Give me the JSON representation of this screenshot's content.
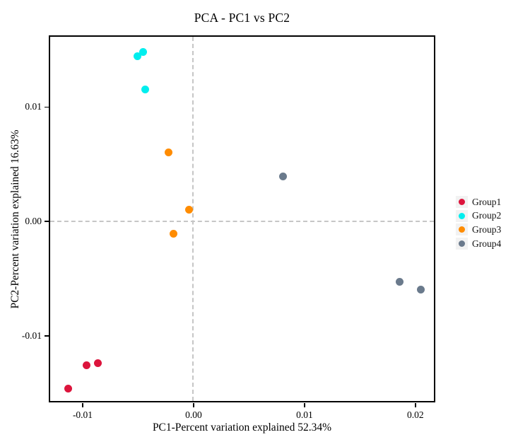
{
  "figure": {
    "title": "PCA - PC1 vs PC2",
    "xlabel": "PC1-Percent variation explained 52.34%",
    "ylabel": "PC2-Percent variation explained 16.63%"
  },
  "chart_data": {
    "type": "scatter",
    "title": "PCA - PC1 vs PC2",
    "xlabel": "PC1-Percent variation explained 52.34%",
    "ylabel": "PC2-Percent variation explained 16.63%",
    "xlim": [
      -0.0129,
      0.0217
    ],
    "ylim": [
      -0.0157,
      0.0161
    ],
    "xticks": [
      {
        "value": -0.01,
        "label": "-0.01"
      },
      {
        "value": 0.0,
        "label": "0.00"
      },
      {
        "value": 0.01,
        "label": "0.01"
      },
      {
        "value": 0.02,
        "label": "0.02"
      }
    ],
    "yticks": [
      {
        "value": 0.01,
        "label": "0.01"
      },
      {
        "value": 0.0,
        "label": "0.00"
      },
      {
        "value": -0.01,
        "label": "-0.01"
      }
    ],
    "zero_reference_lines": {
      "x": 0.0,
      "y": 0.0,
      "style": "dashed",
      "color": "#c6c6c6"
    },
    "grid": false,
    "legend_position": "right-outside",
    "series": [
      {
        "name": "Group1",
        "color": "#dc143c",
        "points": [
          [
            -0.0113,
            -0.0146
          ],
          [
            -0.0096,
            -0.0126
          ],
          [
            -0.0086,
            -0.0124
          ]
        ]
      },
      {
        "name": "Group2",
        "color": "#00eeee",
        "points": [
          [
            -0.005,
            0.0144
          ],
          [
            -0.0045,
            0.0148
          ],
          [
            -0.0043,
            0.0115
          ]
        ]
      },
      {
        "name": "Group3",
        "color": "#ff8c00",
        "points": [
          [
            -0.0022,
            0.006
          ],
          [
            -0.0004,
            0.001
          ],
          [
            -0.0018,
            -0.0011
          ]
        ]
      },
      {
        "name": "Group4",
        "color": "#6a7a8c",
        "points": [
          [
            0.0081,
            0.0039
          ],
          [
            0.0186,
            -0.0053
          ],
          [
            0.0205,
            -0.006
          ]
        ]
      }
    ]
  },
  "legend": {
    "items": [
      {
        "label": "Group1",
        "color": "#dc143c"
      },
      {
        "label": "Group2",
        "color": "#00eeee"
      },
      {
        "label": "Group3",
        "color": "#ff8c00"
      },
      {
        "label": "Group4",
        "color": "#6a7a8c"
      }
    ],
    "key_background": "#f2f2f2"
  },
  "colors": {
    "plot_border": "#000000",
    "background": "#ffffff",
    "dashed_line": "#c6c6c6",
    "text": "#000000"
  }
}
